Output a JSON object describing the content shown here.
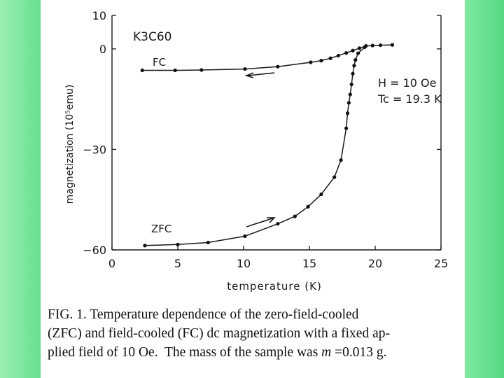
{
  "chart_data": {
    "type": "scatter",
    "xlabel": "temperature (K)",
    "ylabel": "magnetization (10⁵emu)",
    "xlim": [
      0,
      25
    ],
    "ylim": [
      -60,
      10
    ],
    "xticks": [
      0,
      5,
      10,
      15,
      20,
      25
    ],
    "yticks": [
      10,
      0,
      -30,
      -60
    ],
    "grid": false,
    "sample_label": "K3C60",
    "field_label": "H = 10 Oe",
    "tc_label": "Tc = 19.3 K",
    "series": [
      {
        "name": "FC",
        "x": [
          2.3,
          4.8,
          6.8,
          10.1,
          12.6,
          15.1,
          15.9,
          16.6,
          17.2,
          17.8,
          18.3,
          18.8,
          19.3,
          19.8,
          20.4,
          21.3
        ],
        "y": [
          -6.4,
          -6.4,
          -6.3,
          -6.0,
          -5.3,
          -4.0,
          -3.5,
          -2.8,
          -2.0,
          -1.2,
          -0.5,
          0.2,
          0.9,
          1.0,
          1.1,
          1.2
        ]
      },
      {
        "name": "ZFC",
        "x": [
          2.5,
          5.0,
          7.3,
          10.1,
          12.6,
          13.9,
          14.9,
          15.9,
          16.9,
          17.4,
          17.8,
          17.9,
          18.0,
          18.1,
          18.2,
          18.3,
          18.4,
          18.5,
          18.7,
          19.2
        ],
        "y": [
          -58.7,
          -58.4,
          -57.8,
          -55.9,
          -52.2,
          -50.0,
          -47.1,
          -43.4,
          -38.3,
          -33.2,
          -23.7,
          -19.2,
          -16.1,
          -13.6,
          -10.6,
          -7.4,
          -5.0,
          -3.3,
          -1.3,
          0.5
        ]
      }
    ],
    "caption": {
      "line1": "FIG. 1.  Temperature dependence of the zero-field-cooled",
      "line2": "(ZFC) and field-cooled (FC) dc magnetization with a fixed ap-",
      "line3_a": "plied field of 10 Oe.  The mass of the sample was ",
      "line3_m": "m",
      "line3_b": " =0.013 g."
    }
  }
}
